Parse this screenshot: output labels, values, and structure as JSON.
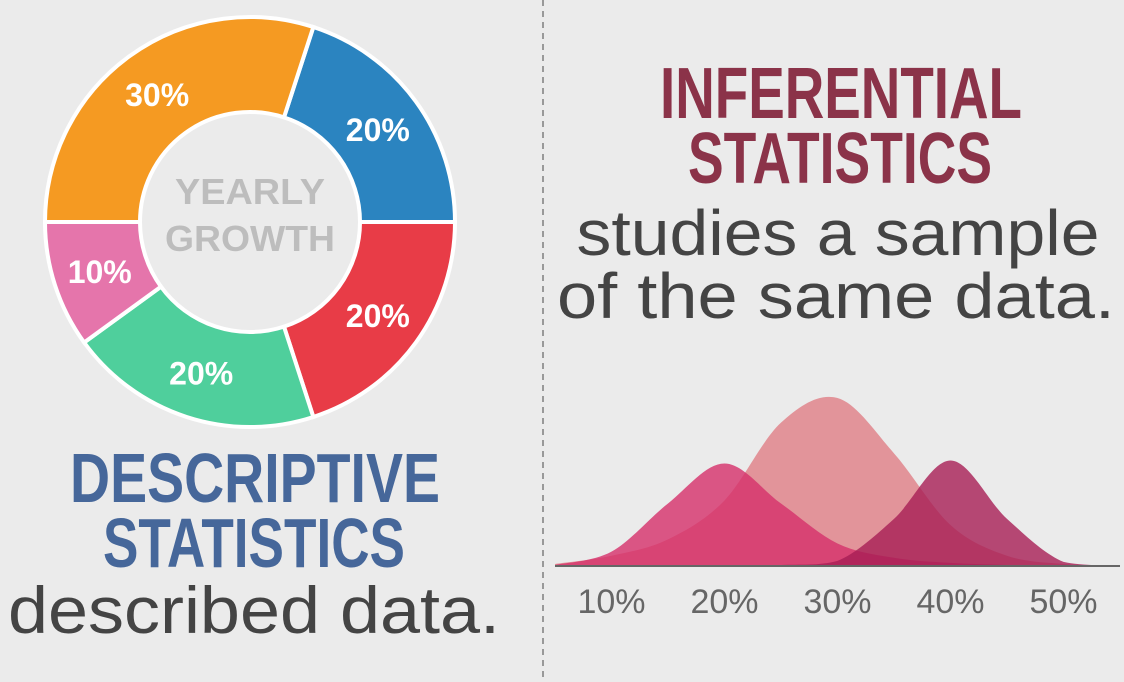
{
  "chart_data": [
    {
      "type": "pie",
      "donut": true,
      "center_label": [
        "YEARLY",
        "GROWTH"
      ],
      "values": [
        20,
        20,
        20,
        10,
        30
      ],
      "value_labels": [
        "20%",
        "20%",
        "20%",
        "10%",
        "30%"
      ],
      "colors": [
        "#2b84c0",
        "#e83c47",
        "#4fcf9c",
        "#e575ab",
        "#f59a22"
      ]
    },
    {
      "type": "area",
      "x": [
        5,
        10,
        15,
        20,
        25,
        30,
        35,
        40,
        45,
        50,
        55
      ],
      "xlim": [
        5,
        55
      ],
      "xticks": [
        {
          "value": 10,
          "label": "10%"
        },
        {
          "value": 20,
          "label": "20%"
        },
        {
          "value": 30,
          "label": "30%"
        },
        {
          "value": 40,
          "label": "40%"
        },
        {
          "value": 50,
          "label": "50%"
        }
      ],
      "series": [
        {
          "color": "#e07e86",
          "values": [
            2,
            10,
            26,
            64,
            140,
            164,
            110,
            40,
            10,
            2,
            0
          ]
        },
        {
          "color": "#d6306a",
          "values": [
            1,
            14,
            61,
            100,
            61,
            22,
            8,
            3,
            1,
            0,
            0
          ]
        },
        {
          "color": "#a81e55",
          "values": [
            0,
            0,
            0,
            0,
            1,
            5,
            46,
            103,
            46,
            4,
            0
          ]
        }
      ]
    }
  ],
  "descriptive": {
    "title": [
      "DESCRIPTIVE",
      "STATISTICS"
    ],
    "caption": "described data."
  },
  "inferential": {
    "title": [
      "INFERENTIAL",
      "STATISTICS"
    ],
    "caption": [
      "studies a sample",
      "of the same data."
    ]
  }
}
